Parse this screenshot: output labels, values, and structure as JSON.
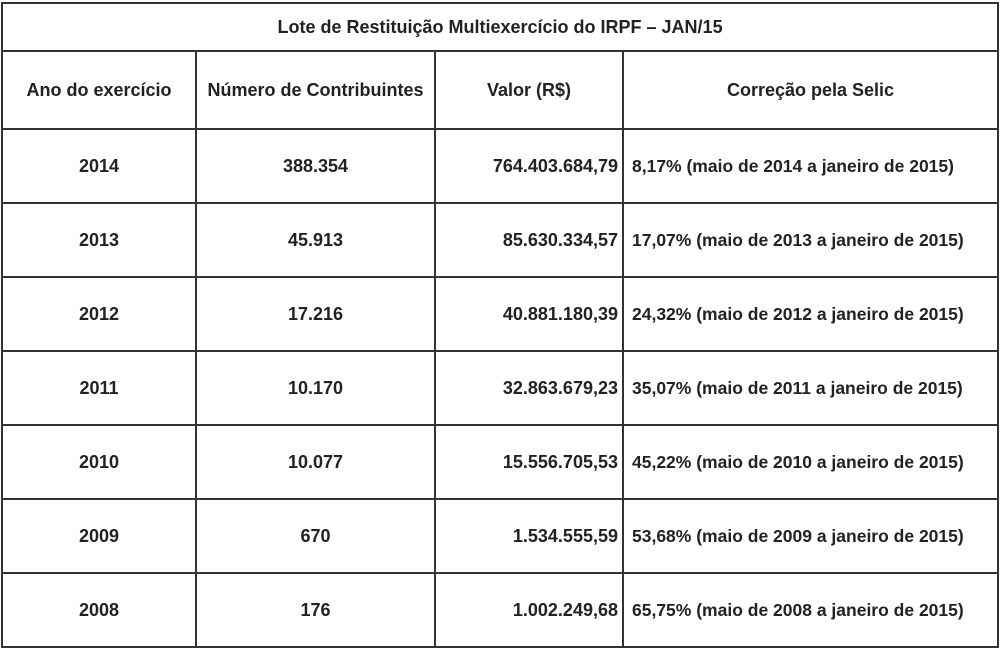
{
  "title": "Lote de Restituição Multiexercício do IRPF – JAN/15",
  "headers": [
    "Ano do exercício",
    "Número de Contribuintes",
    "Valor (R$)",
    "Correção pela Selic"
  ],
  "rows": [
    [
      "2014",
      "388.354",
      "764.403.684,79",
      "8,17% (maio de 2014 a janeiro de 2015)"
    ],
    [
      "2013",
      "45.913",
      "85.630.334,57",
      "17,07% (maio de 2013 a janeiro de 2015)"
    ],
    [
      "2012",
      "17.216",
      "40.881.180,39",
      "24,32% (maio de 2012 a janeiro de 2015)"
    ],
    [
      "2011",
      "10.170",
      "32.863.679,23",
      "35,07% (maio de 2011 a janeiro de 2015)"
    ],
    [
      "2010",
      "10.077",
      "15.556.705,53",
      "45,22% (maio de 2010 a janeiro de 2015)"
    ],
    [
      "2009",
      "670",
      "1.534.555,59",
      "53,68% (maio de 2009 a janeiro de 2015)"
    ],
    [
      "2008",
      "176",
      "1.002.249,68",
      "65,75% (maio de 2008 a janeiro de 2015)"
    ]
  ]
}
